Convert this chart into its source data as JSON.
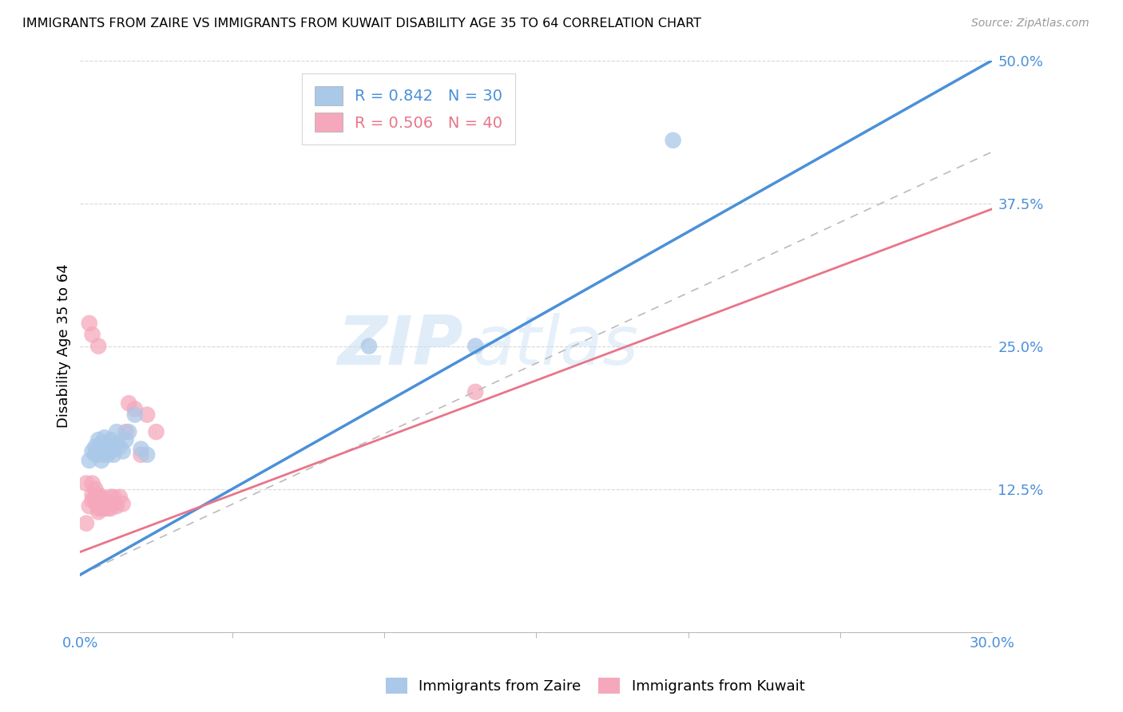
{
  "title": "IMMIGRANTS FROM ZAIRE VS IMMIGRANTS FROM KUWAIT DISABILITY AGE 35 TO 64 CORRELATION CHART",
  "source": "Source: ZipAtlas.com",
  "ylabel_label": "Disability Age 35 to 64",
  "xlim": [
    0.0,
    0.3
  ],
  "ylim": [
    0.0,
    0.5
  ],
  "zaire_color": "#aac8e8",
  "kuwait_color": "#f5a8bc",
  "zaire_line_color": "#4a90d9",
  "kuwait_line_color": "#e8758a",
  "legend_zaire_r": "0.842",
  "legend_zaire_n": "30",
  "legend_kuwait_r": "0.506",
  "legend_kuwait_n": "40",
  "watermark_zip": "ZIP",
  "watermark_atlas": "atlas",
  "background_color": "#ffffff",
  "grid_color": "#d8d8d8",
  "yticks": [
    0.125,
    0.25,
    0.375,
    0.5
  ],
  "ytick_labels": [
    "12.5%",
    "25.0%",
    "37.5%",
    "50.0%"
  ],
  "zaire_scatter_x": [
    0.003,
    0.004,
    0.005,
    0.005,
    0.006,
    0.006,
    0.007,
    0.007,
    0.007,
    0.008,
    0.008,
    0.008,
    0.009,
    0.009,
    0.01,
    0.01,
    0.011,
    0.011,
    0.012,
    0.012,
    0.013,
    0.014,
    0.015,
    0.016,
    0.018,
    0.02,
    0.022,
    0.195,
    0.095,
    0.13
  ],
  "zaire_scatter_y": [
    0.15,
    0.158,
    0.162,
    0.155,
    0.168,
    0.16,
    0.155,
    0.165,
    0.15,
    0.158,
    0.162,
    0.17,
    0.155,
    0.165,
    0.158,
    0.168,
    0.16,
    0.155,
    0.165,
    0.175,
    0.162,
    0.158,
    0.168,
    0.175,
    0.19,
    0.16,
    0.155,
    0.43,
    0.25,
    0.25
  ],
  "kuwait_scatter_x": [
    0.002,
    0.003,
    0.004,
    0.004,
    0.004,
    0.005,
    0.005,
    0.005,
    0.006,
    0.006,
    0.006,
    0.006,
    0.007,
    0.007,
    0.007,
    0.008,
    0.008,
    0.008,
    0.008,
    0.009,
    0.009,
    0.01,
    0.01,
    0.01,
    0.011,
    0.011,
    0.012,
    0.013,
    0.014,
    0.015,
    0.016,
    0.018,
    0.02,
    0.022,
    0.025,
    0.003,
    0.004,
    0.006,
    0.13,
    0.002
  ],
  "kuwait_scatter_y": [
    0.13,
    0.11,
    0.13,
    0.12,
    0.115,
    0.115,
    0.125,
    0.118,
    0.112,
    0.108,
    0.105,
    0.12,
    0.118,
    0.112,
    0.108,
    0.115,
    0.11,
    0.108,
    0.115,
    0.112,
    0.108,
    0.118,
    0.112,
    0.108,
    0.118,
    0.112,
    0.11,
    0.118,
    0.112,
    0.175,
    0.2,
    0.195,
    0.155,
    0.19,
    0.175,
    0.27,
    0.26,
    0.25,
    0.21,
    0.095
  ],
  "zaire_line_x": [
    0.0,
    0.3
  ],
  "zaire_line_y": [
    0.05,
    0.5
  ],
  "kuwait_line_x": [
    0.0,
    0.3
  ],
  "kuwait_line_y": [
    0.07,
    0.37
  ],
  "ref_line_x": [
    0.0,
    0.3
  ],
  "ref_line_y": [
    0.05,
    0.42
  ]
}
